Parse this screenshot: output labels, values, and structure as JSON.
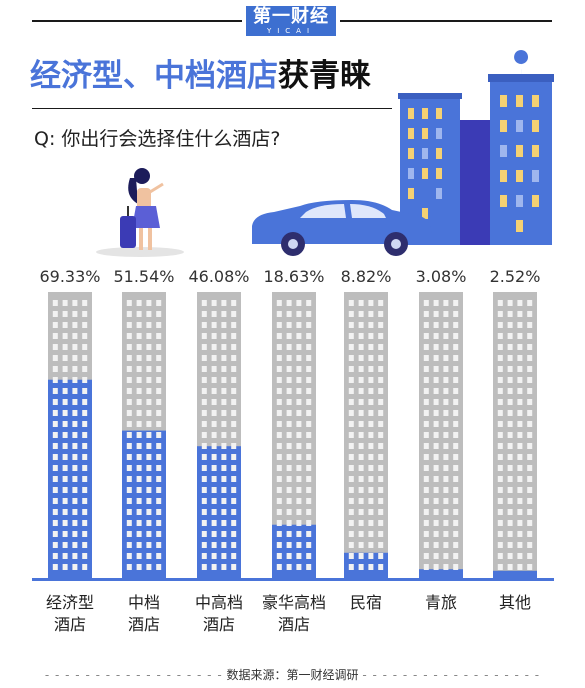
{
  "logo": {
    "main": "第一财经",
    "sub": "YICAI"
  },
  "title": {
    "highlight": "经济型、中档酒店",
    "rest": "获青睐"
  },
  "question": "Q: 你出行会选择住什么酒店?",
  "footer": "数据来源：第一财经调研",
  "colors": {
    "accent": "#4a74d9",
    "bar_bg": "#bdbdbd",
    "window": "#f2f2f2"
  },
  "chart_data": {
    "type": "bar",
    "title": "经济型、中档酒店获青睐",
    "categories": [
      [
        "经济型",
        "酒店"
      ],
      [
        "中档",
        "酒店"
      ],
      [
        "中高档",
        "酒店"
      ],
      [
        "豪华高档",
        "酒店"
      ],
      [
        "民宿"
      ],
      [
        "青旅"
      ],
      [
        "其他"
      ]
    ],
    "values": [
      69.33,
      51.54,
      46.08,
      18.63,
      8.82,
      3.08,
      2.52
    ],
    "value_labels": [
      "69.33%",
      "51.54%",
      "46.08%",
      "18.63%",
      "8.82%",
      "3.08%",
      "2.52%"
    ],
    "ylim": [
      0,
      100
    ],
    "unit": "%"
  }
}
